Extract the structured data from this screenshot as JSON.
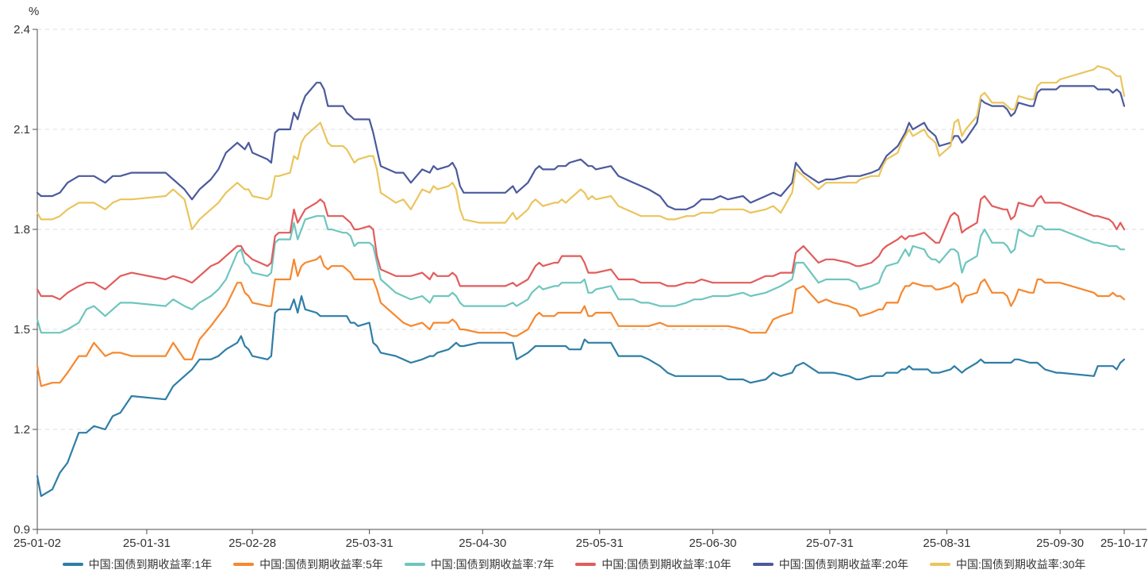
{
  "chart": {
    "unit_label": "%",
    "colors": {
      "background": "#ffffff",
      "axis": "#4d4d4d",
      "grid": "#dcdcdc",
      "text": "#333333"
    },
    "y_axis": {
      "min": 0.9,
      "max": 2.4,
      "tick_labels": [
        "2.4",
        "2.1",
        "1.8",
        "1.5",
        "1.2",
        "0.9"
      ],
      "tick_values": [
        2.4,
        2.1,
        1.8,
        1.5,
        1.2,
        0.9
      ]
    },
    "x_axis": {
      "tick_labels": [
        "25-01-02",
        "25-01-31",
        "25-02-28",
        "25-03-31",
        "25-04-30",
        "25-05-31",
        "25-06-30",
        "25-07-31",
        "25-08-31",
        "25-09-30",
        "25-10-17"
      ]
    }
  },
  "chart_data": {
    "type": "line",
    "title": "",
    "xlabel": "",
    "ylabel": "%",
    "ylim": [
      0.9,
      2.4
    ],
    "grid": "horizontal-dashed",
    "legend_position": "bottom",
    "x_range_labels": [
      "25-01-02",
      "25-10-17"
    ],
    "x": [
      "01-02",
      "01-03",
      "01-06",
      "01-08",
      "01-10",
      "01-13",
      "01-15",
      "01-17",
      "01-20",
      "01-22",
      "01-24",
      "01-27",
      "02-05",
      "02-07",
      "02-10",
      "02-12",
      "02-14",
      "02-17",
      "02-19",
      "02-21",
      "02-24",
      "02-25",
      "02-26",
      "02-27",
      "02-28",
      "03-04",
      "03-05",
      "03-06",
      "03-07",
      "03-10",
      "03-11",
      "03-12",
      "03-13",
      "03-14",
      "03-17",
      "03-18",
      "03-19",
      "03-20",
      "03-21",
      "03-24",
      "03-25",
      "03-26",
      "03-27",
      "03-28",
      "03-31",
      "04-01",
      "04-02",
      "04-03",
      "04-07",
      "04-09",
      "04-11",
      "04-14",
      "04-16",
      "04-17",
      "04-18",
      "04-21",
      "04-22",
      "04-23",
      "04-24",
      "04-25",
      "04-29",
      "05-06",
      "05-08",
      "05-09",
      "05-12",
      "05-13",
      "05-14",
      "05-15",
      "05-16",
      "05-19",
      "05-20",
      "05-21",
      "05-22",
      "05-23",
      "05-26",
      "05-27",
      "05-28",
      "05-29",
      "05-30",
      "06-03",
      "06-05",
      "06-09",
      "06-11",
      "06-13",
      "06-16",
      "06-18",
      "06-20",
      "06-23",
      "06-25",
      "06-27",
      "06-30",
      "07-02",
      "07-04",
      "07-08",
      "07-10",
      "07-14",
      "07-16",
      "07-18",
      "07-21",
      "07-22",
      "07-24",
      "07-28",
      "07-30",
      "08-01",
      "08-05",
      "08-07",
      "08-08",
      "08-11",
      "08-13",
      "08-14",
      "08-15",
      "08-18",
      "08-19",
      "08-20",
      "08-21",
      "08-22",
      "08-25",
      "08-26",
      "08-27",
      "08-28",
      "08-29",
      "09-01",
      "09-02",
      "09-03",
      "09-04",
      "09-05",
      "09-08",
      "09-09",
      "09-10",
      "09-12",
      "09-15",
      "09-16",
      "09-17",
      "09-18",
      "09-19",
      "09-22",
      "09-23",
      "09-24",
      "09-25",
      "09-26",
      "09-29",
      "09-30",
      "10-09",
      "10-10",
      "10-13",
      "10-14",
      "10-15",
      "10-16",
      "10-17"
    ],
    "series": [
      {
        "name": "中国:国债到期收益率:1年",
        "color": "#2E7EA6",
        "values": [
          1.06,
          1.0,
          1.02,
          1.07,
          1.1,
          1.19,
          1.19,
          1.21,
          1.2,
          1.24,
          1.25,
          1.3,
          1.29,
          1.33,
          1.36,
          1.38,
          1.41,
          1.41,
          1.42,
          1.44,
          1.46,
          1.48,
          1.45,
          1.44,
          1.42,
          1.41,
          1.42,
          1.55,
          1.56,
          1.56,
          1.59,
          1.55,
          1.6,
          1.56,
          1.55,
          1.54,
          1.54,
          1.54,
          1.54,
          1.54,
          1.54,
          1.52,
          1.52,
          1.51,
          1.52,
          1.46,
          1.45,
          1.43,
          1.42,
          1.41,
          1.4,
          1.41,
          1.42,
          1.42,
          1.43,
          1.44,
          1.45,
          1.46,
          1.45,
          1.45,
          1.46,
          1.46,
          1.46,
          1.41,
          1.43,
          1.44,
          1.45,
          1.45,
          1.45,
          1.45,
          1.45,
          1.45,
          1.45,
          1.44,
          1.44,
          1.47,
          1.46,
          1.46,
          1.46,
          1.46,
          1.42,
          1.42,
          1.42,
          1.41,
          1.39,
          1.37,
          1.36,
          1.36,
          1.36,
          1.36,
          1.36,
          1.36,
          1.35,
          1.35,
          1.34,
          1.35,
          1.37,
          1.36,
          1.37,
          1.39,
          1.4,
          1.37,
          1.37,
          1.37,
          1.36,
          1.35,
          1.35,
          1.36,
          1.36,
          1.36,
          1.37,
          1.37,
          1.38,
          1.38,
          1.39,
          1.38,
          1.38,
          1.38,
          1.37,
          1.37,
          1.37,
          1.38,
          1.39,
          1.38,
          1.37,
          1.38,
          1.4,
          1.41,
          1.4,
          1.4,
          1.4,
          1.4,
          1.4,
          1.41,
          1.41,
          1.4,
          1.4,
          1.4,
          1.39,
          1.38,
          1.37,
          1.37,
          1.36,
          1.39,
          1.39,
          1.39,
          1.38,
          1.4,
          1.41
        ]
      },
      {
        "name": "中国:国债到期收益率:5年",
        "color": "#F6882F",
        "values": [
          1.39,
          1.33,
          1.34,
          1.34,
          1.37,
          1.42,
          1.42,
          1.46,
          1.42,
          1.43,
          1.43,
          1.42,
          1.42,
          1.46,
          1.41,
          1.41,
          1.47,
          1.51,
          1.54,
          1.57,
          1.64,
          1.64,
          1.61,
          1.6,
          1.58,
          1.57,
          1.57,
          1.65,
          1.65,
          1.65,
          1.71,
          1.66,
          1.69,
          1.7,
          1.71,
          1.72,
          1.69,
          1.68,
          1.69,
          1.69,
          1.68,
          1.67,
          1.65,
          1.65,
          1.65,
          1.65,
          1.62,
          1.58,
          1.54,
          1.52,
          1.51,
          1.52,
          1.5,
          1.52,
          1.52,
          1.52,
          1.53,
          1.52,
          1.5,
          1.5,
          1.49,
          1.49,
          1.48,
          1.48,
          1.5,
          1.52,
          1.54,
          1.55,
          1.54,
          1.54,
          1.55,
          1.55,
          1.55,
          1.55,
          1.55,
          1.57,
          1.54,
          1.54,
          1.55,
          1.55,
          1.51,
          1.51,
          1.51,
          1.51,
          1.52,
          1.51,
          1.51,
          1.51,
          1.51,
          1.51,
          1.51,
          1.51,
          1.51,
          1.5,
          1.49,
          1.49,
          1.53,
          1.54,
          1.55,
          1.62,
          1.63,
          1.58,
          1.59,
          1.58,
          1.57,
          1.56,
          1.54,
          1.55,
          1.56,
          1.56,
          1.58,
          1.58,
          1.61,
          1.63,
          1.63,
          1.64,
          1.63,
          1.63,
          1.63,
          1.62,
          1.62,
          1.63,
          1.64,
          1.63,
          1.58,
          1.6,
          1.61,
          1.64,
          1.65,
          1.61,
          1.61,
          1.6,
          1.57,
          1.59,
          1.62,
          1.61,
          1.61,
          1.65,
          1.65,
          1.64,
          1.64,
          1.64,
          1.61,
          1.6,
          1.6,
          1.61,
          1.6,
          1.6,
          1.59
        ]
      },
      {
        "name": "中国:国债到期收益率:7年",
        "color": "#6EC6BE",
        "values": [
          1.53,
          1.49,
          1.49,
          1.49,
          1.5,
          1.52,
          1.56,
          1.57,
          1.54,
          1.56,
          1.58,
          1.58,
          1.57,
          1.59,
          1.57,
          1.56,
          1.58,
          1.6,
          1.62,
          1.65,
          1.73,
          1.74,
          1.7,
          1.69,
          1.67,
          1.66,
          1.67,
          1.76,
          1.77,
          1.77,
          1.82,
          1.77,
          1.8,
          1.83,
          1.84,
          1.84,
          1.84,
          1.8,
          1.8,
          1.79,
          1.79,
          1.78,
          1.75,
          1.76,
          1.76,
          1.75,
          1.7,
          1.65,
          1.61,
          1.6,
          1.59,
          1.6,
          1.58,
          1.6,
          1.6,
          1.6,
          1.61,
          1.6,
          1.58,
          1.57,
          1.57,
          1.57,
          1.58,
          1.57,
          1.59,
          1.61,
          1.62,
          1.63,
          1.62,
          1.63,
          1.63,
          1.64,
          1.64,
          1.64,
          1.64,
          1.65,
          1.61,
          1.61,
          1.62,
          1.63,
          1.59,
          1.59,
          1.58,
          1.58,
          1.57,
          1.57,
          1.57,
          1.58,
          1.59,
          1.59,
          1.6,
          1.6,
          1.6,
          1.61,
          1.6,
          1.61,
          1.62,
          1.63,
          1.65,
          1.7,
          1.7,
          1.64,
          1.65,
          1.65,
          1.65,
          1.64,
          1.62,
          1.63,
          1.64,
          1.67,
          1.69,
          1.7,
          1.72,
          1.74,
          1.72,
          1.75,
          1.74,
          1.72,
          1.71,
          1.71,
          1.7,
          1.74,
          1.74,
          1.73,
          1.67,
          1.7,
          1.72,
          1.78,
          1.8,
          1.76,
          1.76,
          1.75,
          1.73,
          1.74,
          1.8,
          1.78,
          1.78,
          1.81,
          1.81,
          1.8,
          1.8,
          1.8,
          1.76,
          1.76,
          1.75,
          1.75,
          1.75,
          1.74,
          1.74
        ]
      },
      {
        "name": "中国:国债到期收益率:10年",
        "color": "#E25C5C",
        "values": [
          1.62,
          1.6,
          1.6,
          1.59,
          1.61,
          1.63,
          1.64,
          1.64,
          1.62,
          1.64,
          1.66,
          1.67,
          1.65,
          1.66,
          1.65,
          1.64,
          1.66,
          1.69,
          1.7,
          1.72,
          1.75,
          1.75,
          1.73,
          1.72,
          1.71,
          1.69,
          1.7,
          1.78,
          1.79,
          1.79,
          1.86,
          1.82,
          1.84,
          1.86,
          1.88,
          1.89,
          1.88,
          1.84,
          1.84,
          1.84,
          1.83,
          1.82,
          1.8,
          1.8,
          1.81,
          1.8,
          1.72,
          1.68,
          1.66,
          1.66,
          1.66,
          1.67,
          1.65,
          1.67,
          1.66,
          1.66,
          1.67,
          1.66,
          1.63,
          1.63,
          1.63,
          1.63,
          1.64,
          1.63,
          1.65,
          1.67,
          1.69,
          1.7,
          1.69,
          1.7,
          1.7,
          1.72,
          1.72,
          1.72,
          1.72,
          1.7,
          1.67,
          1.67,
          1.67,
          1.68,
          1.65,
          1.65,
          1.64,
          1.64,
          1.64,
          1.63,
          1.63,
          1.64,
          1.64,
          1.65,
          1.64,
          1.64,
          1.64,
          1.64,
          1.64,
          1.66,
          1.66,
          1.67,
          1.67,
          1.73,
          1.75,
          1.7,
          1.71,
          1.71,
          1.7,
          1.69,
          1.69,
          1.7,
          1.72,
          1.74,
          1.75,
          1.77,
          1.78,
          1.77,
          1.78,
          1.78,
          1.79,
          1.78,
          1.77,
          1.76,
          1.76,
          1.84,
          1.85,
          1.84,
          1.79,
          1.8,
          1.82,
          1.89,
          1.9,
          1.87,
          1.86,
          1.86,
          1.83,
          1.84,
          1.88,
          1.87,
          1.87,
          1.89,
          1.9,
          1.88,
          1.88,
          1.88,
          1.84,
          1.84,
          1.83,
          1.82,
          1.8,
          1.82,
          1.8
        ]
      },
      {
        "name": "中国:国债到期收益率:20年",
        "color": "#4B5A9C",
        "values": [
          1.91,
          1.9,
          1.9,
          1.91,
          1.94,
          1.96,
          1.96,
          1.96,
          1.94,
          1.96,
          1.96,
          1.97,
          1.97,
          1.95,
          1.92,
          1.89,
          1.92,
          1.95,
          1.98,
          2.03,
          2.06,
          2.05,
          2.04,
          2.06,
          2.03,
          2.01,
          2.0,
          2.09,
          2.1,
          2.1,
          2.15,
          2.13,
          2.17,
          2.2,
          2.24,
          2.24,
          2.22,
          2.17,
          2.17,
          2.17,
          2.15,
          2.14,
          2.13,
          2.13,
          2.13,
          2.09,
          2.04,
          1.99,
          1.97,
          1.97,
          1.94,
          1.98,
          1.97,
          1.99,
          1.98,
          1.99,
          2.0,
          1.98,
          1.93,
          1.91,
          1.91,
          1.91,
          1.93,
          1.91,
          1.94,
          1.96,
          1.98,
          1.99,
          1.98,
          1.98,
          1.99,
          1.99,
          1.99,
          2.0,
          2.01,
          2.0,
          1.99,
          1.99,
          1.98,
          1.99,
          1.96,
          1.94,
          1.93,
          1.92,
          1.9,
          1.87,
          1.86,
          1.86,
          1.87,
          1.89,
          1.89,
          1.9,
          1.89,
          1.9,
          1.88,
          1.9,
          1.91,
          1.9,
          1.94,
          2.0,
          1.97,
          1.94,
          1.95,
          1.95,
          1.96,
          1.96,
          1.96,
          1.97,
          1.98,
          2.0,
          2.02,
          2.05,
          2.07,
          2.09,
          2.12,
          2.1,
          2.12,
          2.1,
          2.09,
          2.08,
          2.05,
          2.06,
          2.08,
          2.08,
          2.06,
          2.07,
          2.12,
          2.19,
          2.18,
          2.17,
          2.17,
          2.16,
          2.14,
          2.15,
          2.18,
          2.17,
          2.17,
          2.21,
          2.22,
          2.22,
          2.22,
          2.23,
          2.23,
          2.22,
          2.22,
          2.21,
          2.22,
          2.21,
          2.17
        ]
      },
      {
        "name": "中国:国债到期收益率:30年",
        "color": "#EAC55D",
        "values": [
          1.85,
          1.83,
          1.83,
          1.84,
          1.86,
          1.88,
          1.88,
          1.88,
          1.86,
          1.88,
          1.89,
          1.89,
          1.9,
          1.92,
          1.89,
          1.8,
          1.83,
          1.86,
          1.88,
          1.91,
          1.94,
          1.93,
          1.92,
          1.92,
          1.9,
          1.89,
          1.9,
          1.96,
          1.96,
          1.97,
          2.02,
          2.01,
          2.06,
          2.08,
          2.11,
          2.12,
          2.09,
          2.06,
          2.05,
          2.05,
          2.04,
          2.02,
          2.0,
          2.01,
          2.02,
          2.02,
          1.98,
          1.91,
          1.88,
          1.89,
          1.86,
          1.92,
          1.91,
          1.93,
          1.92,
          1.93,
          1.94,
          1.92,
          1.86,
          1.83,
          1.82,
          1.82,
          1.85,
          1.83,
          1.86,
          1.88,
          1.89,
          1.88,
          1.87,
          1.88,
          1.88,
          1.89,
          1.88,
          1.89,
          1.92,
          1.91,
          1.89,
          1.9,
          1.89,
          1.9,
          1.87,
          1.85,
          1.84,
          1.84,
          1.84,
          1.83,
          1.83,
          1.84,
          1.84,
          1.85,
          1.85,
          1.86,
          1.86,
          1.86,
          1.85,
          1.86,
          1.87,
          1.85,
          1.91,
          1.98,
          1.96,
          1.92,
          1.94,
          1.94,
          1.94,
          1.94,
          1.95,
          1.96,
          1.96,
          1.99,
          2.01,
          2.03,
          2.06,
          2.08,
          2.1,
          2.08,
          2.1,
          2.08,
          2.07,
          2.06,
          2.02,
          2.05,
          2.12,
          2.13,
          2.08,
          2.1,
          2.14,
          2.2,
          2.21,
          2.18,
          2.18,
          2.17,
          2.16,
          2.16,
          2.2,
          2.19,
          2.19,
          2.23,
          2.24,
          2.24,
          2.24,
          2.25,
          2.28,
          2.29,
          2.28,
          2.27,
          2.26,
          2.26,
          2.2
        ]
      }
    ]
  }
}
